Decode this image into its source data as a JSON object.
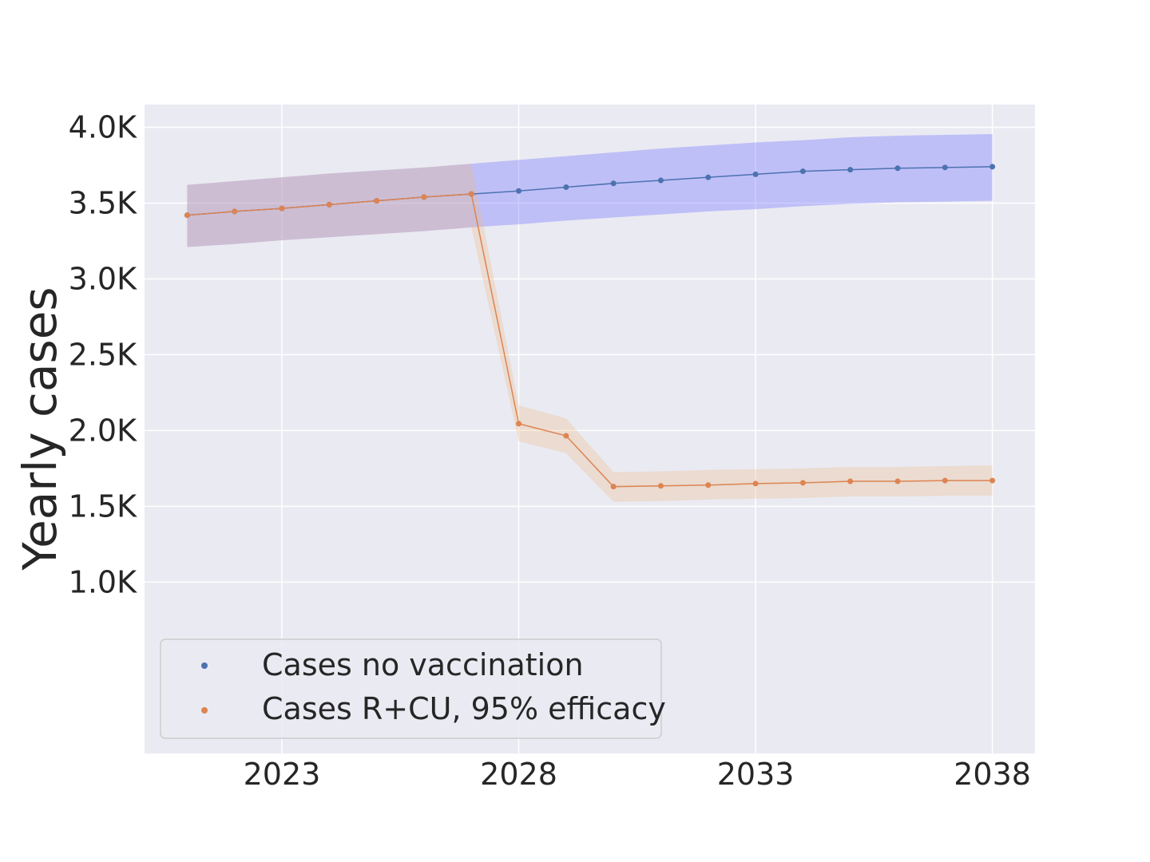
{
  "chart_data": {
    "type": "line",
    "title": "",
    "xlabel": "",
    "ylabel": "Yearly cases",
    "xlim": [
      2020.1,
      2038.9
    ],
    "ylim": [
      -130,
      4150
    ],
    "x_ticks": [
      2023,
      2028,
      2033,
      2038
    ],
    "x_tick_labels": [
      "2023",
      "2028",
      "2033",
      "2038"
    ],
    "y_ticks": [
      1000,
      1500,
      2000,
      2500,
      3000,
      3500,
      4000
    ],
    "y_tick_labels": [
      "1.0K",
      "1.5K",
      "2.0K",
      "2.5K",
      "3.0K",
      "3.5K",
      "4.0K"
    ],
    "grid": true,
    "legend_position": "lower-left",
    "x": [
      2021,
      2022,
      2023,
      2024,
      2025,
      2026,
      2027,
      2028,
      2029,
      2030,
      2031,
      2032,
      2033,
      2034,
      2035,
      2036,
      2037,
      2038
    ],
    "series": [
      {
        "name": "Cases no vaccination",
        "color": "#4c72b0",
        "band_color": "#8080ff",
        "values": [
          3420,
          3445,
          3465,
          3490,
          3515,
          3540,
          3560,
          3580,
          3605,
          3630,
          3650,
          3670,
          3690,
          3710,
          3720,
          3730,
          3735,
          3740
        ],
        "lower": [
          3210,
          3230,
          3255,
          3275,
          3295,
          3315,
          3340,
          3360,
          3385,
          3405,
          3425,
          3445,
          3460,
          3480,
          3495,
          3505,
          3510,
          3515
        ],
        "upper": [
          3620,
          3645,
          3670,
          3695,
          3715,
          3735,
          3760,
          3785,
          3810,
          3835,
          3860,
          3880,
          3900,
          3915,
          3935,
          3945,
          3950,
          3955
        ]
      },
      {
        "name": "Cases R+CU, 95% efficacy",
        "color": "#dd8452",
        "band_color": "#f0b880",
        "values": [
          3420,
          3445,
          3465,
          3490,
          3515,
          3540,
          3560,
          2045,
          1965,
          1630,
          1635,
          1640,
          1650,
          1655,
          1665,
          1665,
          1670,
          1670
        ],
        "lower": [
          3210,
          3230,
          3255,
          3275,
          3295,
          3315,
          3340,
          1930,
          1850,
          1530,
          1535,
          1545,
          1550,
          1555,
          1565,
          1565,
          1570,
          1570
        ],
        "upper": [
          3620,
          3645,
          3670,
          3695,
          3715,
          3735,
          3760,
          2165,
          2080,
          1725,
          1730,
          1740,
          1745,
          1750,
          1760,
          1760,
          1765,
          1770
        ]
      }
    ]
  }
}
